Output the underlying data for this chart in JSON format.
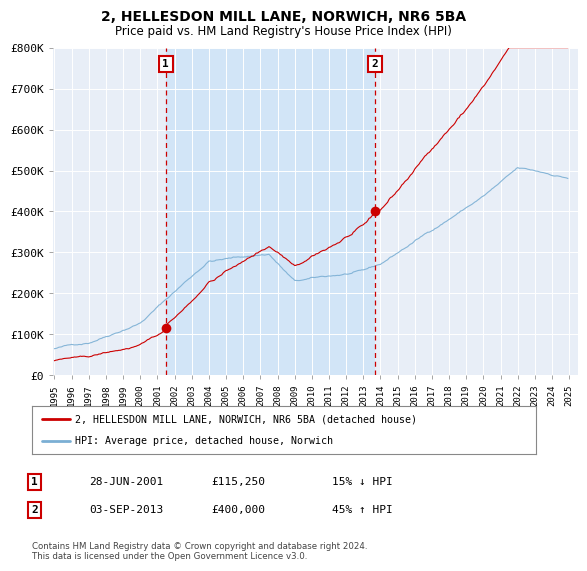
{
  "title": "2, HELLESDON MILL LANE, NORWICH, NR6 5BA",
  "subtitle": "Price paid vs. HM Land Registry's House Price Index (HPI)",
  "legend_line1": "2, HELLESDON MILL LANE, NORWICH, NR6 5BA (detached house)",
  "legend_line2": "HPI: Average price, detached house, Norwich",
  "annotation1_date": "28-JUN-2001",
  "annotation1_price": "£115,250",
  "annotation1_hpi": "15% ↓ HPI",
  "annotation2_date": "03-SEP-2013",
  "annotation2_price": "£400,000",
  "annotation2_hpi": "45% ↑ HPI",
  "footer": "Contains HM Land Registry data © Crown copyright and database right 2024.\nThis data is licensed under the Open Government Licence v3.0.",
  "sale1_year": 2001.49,
  "sale1_value": 115250,
  "sale2_year": 2013.67,
  "sale2_value": 400000,
  "property_color": "#cc0000",
  "hpi_color": "#7bafd4",
  "highlight_color": "#d0e4f7",
  "dashed_line_color": "#cc0000",
  "plot_bg_color": "#e8eef7",
  "ylim_max": 800000,
  "ylim_min": 0,
  "xmin": 1995,
  "xmax": 2025
}
